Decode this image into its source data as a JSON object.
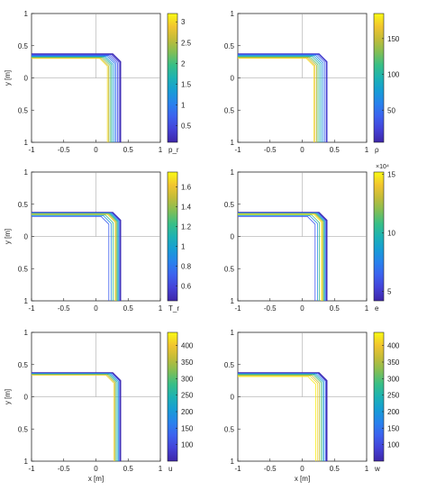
{
  "chart_data": [
    {
      "type": "contour",
      "field_label": "p_r",
      "xlabel": "",
      "ylabel": "y [m]",
      "xlim": [
        -1,
        1
      ],
      "ylim": [
        1,
        -1
      ],
      "x_ticks": [
        "-1",
        "-0.5",
        "0",
        "0.5",
        "1"
      ],
      "y_ticks": [
        "1",
        "0.5",
        "0",
        "0.5",
        "1"
      ],
      "colorbar": {
        "range": [
          0.1,
          3.2
        ],
        "ticks": [
          "0.5",
          "1",
          "1.5",
          "2",
          "2.5",
          "3"
        ],
        "exponent": ""
      },
      "contour_lines": [
        {
          "level": 0.2,
          "offset": 0.4,
          "arm_x": 0.38,
          "arm_y": -0.38
        },
        {
          "level": 0.4,
          "offset": 0.35
        },
        {
          "level": 0.6,
          "offset": 0.3
        },
        {
          "level": 0.8,
          "offset": 0.25
        },
        {
          "level": 1.0,
          "offset": 0.2
        },
        {
          "level": 1.4,
          "offset": 0.14
        },
        {
          "level": 1.8,
          "offset": 0.09
        },
        {
          "level": 2.2,
          "offset": 0.04
        },
        {
          "level": 2.6,
          "offset": -0.01
        },
        {
          "level": 3.0,
          "offset": -0.05
        }
      ]
    },
    {
      "type": "contour",
      "field_label": "ρ",
      "xlabel": "",
      "ylabel": "",
      "xlim": [
        -1,
        1
      ],
      "ylim": [
        1,
        -1
      ],
      "x_ticks": [
        "-1",
        "-0.5",
        "0",
        "0.5",
        "1"
      ],
      "y_ticks": [
        "1",
        "0.5",
        "0",
        "0.5",
        "1"
      ],
      "colorbar": {
        "range": [
          5,
          185
        ],
        "ticks": [
          "50",
          "100",
          "150"
        ],
        "exponent": ""
      },
      "contour_lines": [
        {
          "level": 20,
          "offset": 0.4
        },
        {
          "level": 40,
          "offset": 0.34
        },
        {
          "level": 60,
          "offset": 0.28
        },
        {
          "level": 80,
          "offset": 0.22
        },
        {
          "level": 100,
          "offset": 0.16
        },
        {
          "level": 120,
          "offset": 0.1
        },
        {
          "level": 140,
          "offset": 0.05
        },
        {
          "level": 160,
          "offset": 0.0
        },
        {
          "level": 175,
          "offset": -0.04
        }
      ]
    },
    {
      "type": "contour",
      "field_label": "T_r",
      "xlabel": "",
      "ylabel": "y [m]",
      "xlim": [
        -1,
        1
      ],
      "ylim": [
        1,
        -1
      ],
      "x_ticks": [
        "-1",
        "-0.5",
        "0",
        "0.5",
        "1"
      ],
      "y_ticks": [
        "1",
        "0.5",
        "0",
        "0.5",
        "1"
      ],
      "colorbar": {
        "range": [
          0.45,
          1.75
        ],
        "ticks": [
          "0.6",
          "0.8",
          "1",
          "1.2",
          "1.4",
          "1.6"
        ],
        "exponent": ""
      },
      "contour_lines": [
        {
          "level": 0.5,
          "offset": 0.4
        },
        {
          "level": 0.7,
          "offset": 0.37
        },
        {
          "level": 0.9,
          "offset": 0.34
        },
        {
          "level": 1.1,
          "offset": 0.31
        },
        {
          "level": 1.3,
          "offset": 0.28
        },
        {
          "level": 1.5,
          "offset": 0.25
        },
        {
          "level": 1.65,
          "offset": 0.22
        },
        {
          "level": 1.2,
          "offset": 0.15
        },
        {
          "level": 0.9,
          "offset": 0.08
        },
        {
          "level": 0.7,
          "offset": 0.0
        }
      ]
    },
    {
      "type": "contour",
      "field_label": "e",
      "xlabel": "",
      "ylabel": "",
      "xlim": [
        -1,
        1
      ],
      "ylim": [
        1,
        -1
      ],
      "x_ticks": [
        "-1",
        "-0.5",
        "0",
        "0.5",
        "1"
      ],
      "y_ticks": [
        "1",
        "0.5",
        "0",
        "0.5",
        "1"
      ],
      "colorbar": {
        "range": [
          4.2,
          15.2
        ],
        "ticks": [
          "5",
          "10",
          "15"
        ],
        "exponent": "×10⁴"
      },
      "contour_lines": [
        {
          "level": 4.5,
          "offset": 0.4
        },
        {
          "level": 6,
          "offset": 0.37
        },
        {
          "level": 8,
          "offset": 0.34
        },
        {
          "level": 10,
          "offset": 0.31
        },
        {
          "level": 12,
          "offset": 0.28
        },
        {
          "level": 14,
          "offset": 0.25
        },
        {
          "level": 15,
          "offset": 0.22
        },
        {
          "level": 11,
          "offset": 0.15
        },
        {
          "level": 8,
          "offset": 0.08
        },
        {
          "level": 6,
          "offset": 0.0
        }
      ]
    },
    {
      "type": "contour",
      "field_label": "u",
      "xlabel": "x [m]",
      "ylabel": "y [m]",
      "xlim": [
        -1,
        1
      ],
      "ylim": [
        1,
        -1
      ],
      "x_ticks": [
        "-1",
        "-0.5",
        "0",
        "0.5",
        "1"
      ],
      "y_ticks": [
        "1",
        "0.5",
        "0",
        "0.5",
        "1"
      ],
      "colorbar": {
        "range": [
          50,
          440
        ],
        "ticks": [
          "100",
          "150",
          "200",
          "250",
          "300",
          "350",
          "400"
        ],
        "exponent": ""
      },
      "contour_lines": [
        {
          "level": 60,
          "offset": 0.4
        },
        {
          "level": 120,
          "offset": 0.37
        },
        {
          "level": 180,
          "offset": 0.33
        },
        {
          "level": 240,
          "offset": 0.29
        },
        {
          "level": 300,
          "offset": 0.25
        },
        {
          "level": 360,
          "offset": 0.21
        },
        {
          "level": 410,
          "offset": 0.17
        }
      ]
    },
    {
      "type": "contour",
      "field_label": "w",
      "xlabel": "x [m]",
      "ylabel": "",
      "xlim": [
        -1,
        1
      ],
      "ylim": [
        1,
        -1
      ],
      "x_ticks": [
        "-1",
        "-0.5",
        "0",
        "0.5",
        "1"
      ],
      "y_ticks": [
        "1",
        "0.5",
        "0",
        "0.5",
        "1"
      ],
      "colorbar": {
        "range": [
          50,
          440
        ],
        "ticks": [
          "100",
          "150",
          "200",
          "250",
          "300",
          "350",
          "400"
        ],
        "exponent": ""
      },
      "contour_lines": [
        {
          "level": 60,
          "offset": 0.4
        },
        {
          "level": 120,
          "offset": 0.36
        },
        {
          "level": 180,
          "offset": 0.31
        },
        {
          "level": 240,
          "offset": 0.26
        },
        {
          "level": 300,
          "offset": 0.21
        },
        {
          "level": 360,
          "offset": 0.15
        },
        {
          "level": 410,
          "offset": 0.09
        },
        {
          "level": 430,
          "offset": 0.02
        }
      ]
    }
  ]
}
